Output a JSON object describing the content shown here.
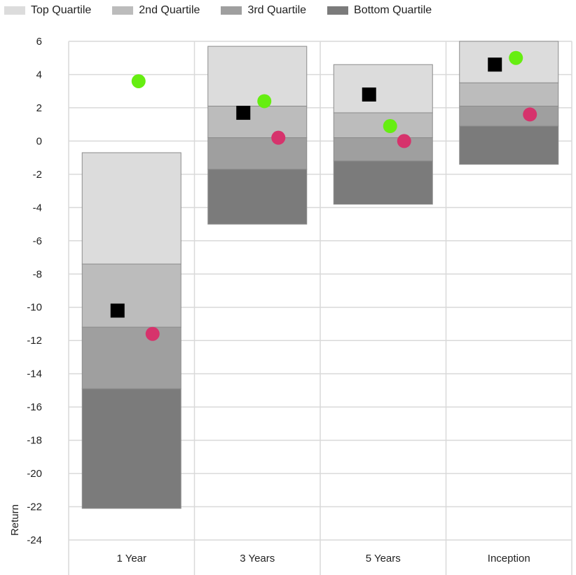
{
  "chart_data": {
    "type": "bar",
    "subtype": "stacked-floating-quartile-bars-with-markers",
    "categories": [
      "1 Year",
      "3 Years",
      "5 Years",
      "Inception"
    ],
    "ylabel": "Return",
    "xlabel": "",
    "ylim": [
      -24,
      6
    ],
    "y_ticks": [
      6,
      4,
      2,
      0,
      -2,
      -4,
      -6,
      -8,
      -10,
      -12,
      -14,
      -16,
      -18,
      -20,
      -22,
      -24
    ],
    "grid": true,
    "legend_position": "top-left",
    "series": [
      {
        "name": "Top Quartile",
        "color": "#dcdcdc",
        "low": [
          -7.4,
          2.1,
          1.7,
          3.5
        ],
        "high": [
          -0.7,
          5.7,
          4.6,
          6.0
        ]
      },
      {
        "name": "2nd Quartile",
        "color": "#bcbcbc",
        "low": [
          -11.2,
          0.2,
          0.2,
          2.1
        ],
        "high": [
          -7.4,
          2.1,
          1.7,
          3.5
        ]
      },
      {
        "name": "3rd Quartile",
        "color": "#9f9f9f",
        "low": [
          -14.9,
          -1.7,
          -1.2,
          0.9
        ],
        "high": [
          -11.2,
          0.2,
          0.2,
          2.1
        ]
      },
      {
        "name": "Bottom Quartile",
        "color": "#7b7b7b",
        "low": [
          -22.1,
          -5.0,
          -3.8,
          -1.4
        ],
        "high": [
          -14.9,
          -1.7,
          -1.2,
          0.9
        ]
      }
    ],
    "markers": [
      {
        "shape": "square",
        "color": "#000000",
        "values": [
          -10.2,
          1.7,
          2.8,
          4.6
        ]
      },
      {
        "shape": "circle",
        "color": "#66ee11",
        "values": [
          3.6,
          2.4,
          0.9,
          5.0
        ]
      },
      {
        "shape": "circle",
        "color": "#d6336c",
        "values": [
          -11.6,
          0.2,
          0.0,
          1.6
        ]
      }
    ]
  }
}
